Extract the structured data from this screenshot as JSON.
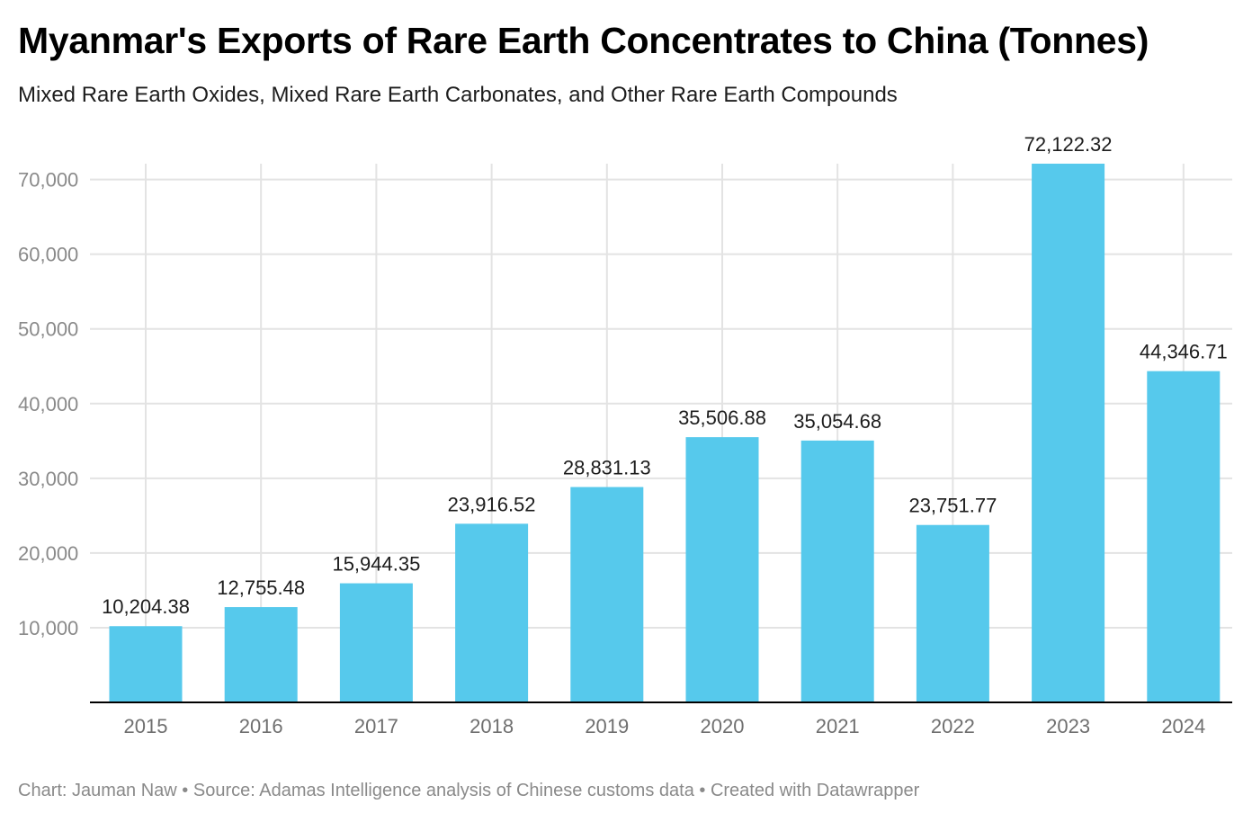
{
  "title": "Myanmar's Exports of Rare Earth Concentrates to China (Tonnes)",
  "subtitle": "Mixed Rare Earth Oxides, Mixed Rare Earth Carbonates, and Other Rare Earth Compounds",
  "footer": "Chart: Jauman Naw • Source: Adamas Intelligence analysis of Chinese customs data • Created with Datawrapper",
  "colors": {
    "bar": "#56c9ec",
    "grid": "#e3e3e3",
    "axis": "#000000",
    "tick_label": "#8a8a8a",
    "value_label": "#1d1d1d"
  },
  "chart_data": {
    "type": "bar",
    "categories": [
      "2015",
      "2016",
      "2017",
      "2018",
      "2019",
      "2020",
      "2021",
      "2022",
      "2023",
      "2024"
    ],
    "values": [
      10204.38,
      12755.48,
      15944.35,
      23916.52,
      28831.13,
      35506.88,
      35054.68,
      23751.77,
      72122.32,
      44346.71
    ],
    "value_labels": [
      "10,204.38",
      "12,755.48",
      "15,944.35",
      "23,916.52",
      "28,831.13",
      "35,506.88",
      "35,054.68",
      "23,751.77",
      "72,122.32",
      "44,346.71"
    ],
    "y_ticks": [
      10000,
      20000,
      30000,
      40000,
      50000,
      60000,
      70000
    ],
    "y_tick_labels": [
      "10,000",
      "20,000",
      "30,000",
      "40,000",
      "50,000",
      "60,000",
      "70,000"
    ],
    "ylim": [
      0,
      72122.32
    ],
    "grid": true
  }
}
